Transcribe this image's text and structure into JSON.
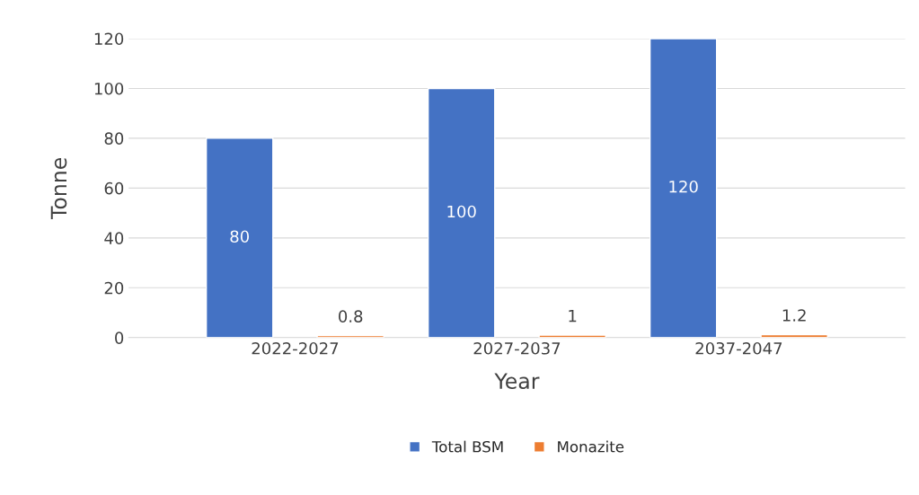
{
  "chart_data": {
    "type": "bar",
    "xlabel": "Year",
    "ylabel": "Tonne",
    "categories": [
      "2022-2027",
      "2027-2037",
      "2037-2047"
    ],
    "series": [
      {
        "name": "Total BSM",
        "color": "#4472c4",
        "values": [
          80,
          100,
          120
        ]
      },
      {
        "name": "Monazite",
        "color": "#ed7d31",
        "values": [
          0.8,
          1,
          1.2
        ]
      }
    ],
    "ylim": [
      0,
      120
    ],
    "yticks": [
      0,
      20,
      40,
      60,
      80,
      100,
      120
    ],
    "grid": "y",
    "legend": "bottom",
    "data_labels": true
  }
}
